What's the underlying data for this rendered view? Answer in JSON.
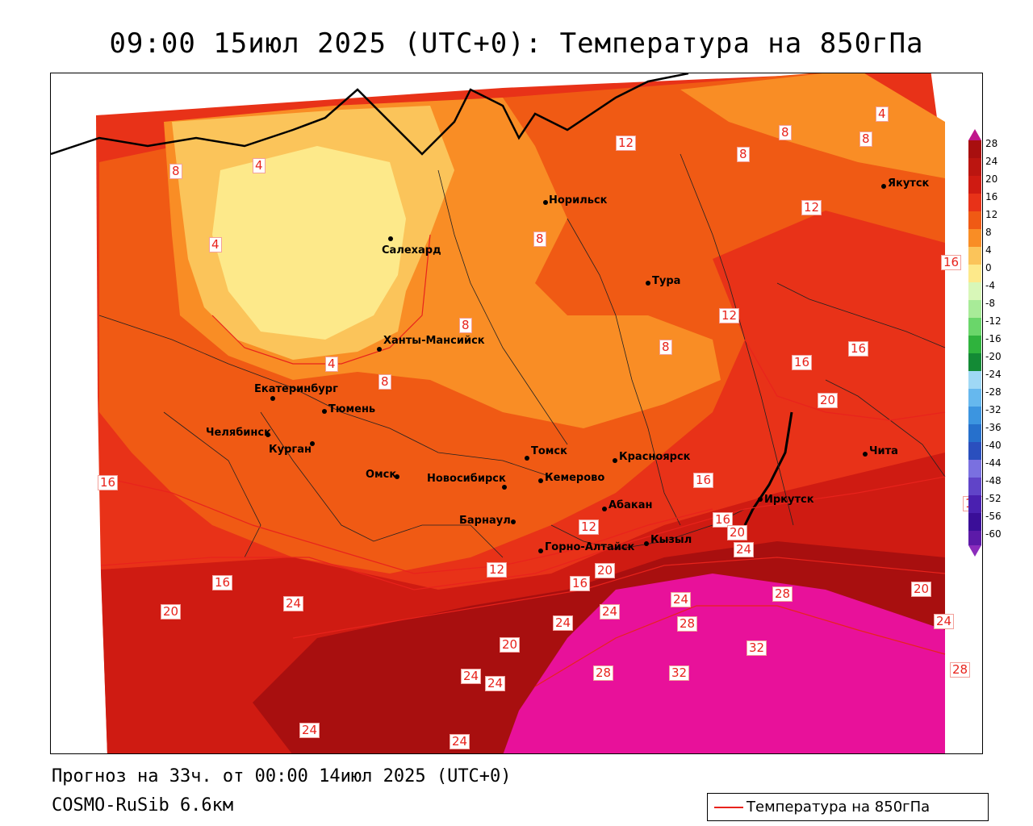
{
  "title": "09:00 15июл 2025 (UTC+0): Температура на 850гПа",
  "footer": {
    "forecast": "Прогноз на 33ч. от 00:00 14июл 2025 (UTC+0)",
    "model": "COSMO-RuSib 6.6км"
  },
  "legend_series": "Температура на 850гПа",
  "legend_ticks": [
    "28",
    "24",
    "20",
    "16",
    "12",
    "8",
    "4",
    "0",
    "-4",
    "-8",
    "-12",
    "-16",
    "-20",
    "-24",
    "-28",
    "-32",
    "-36",
    "-40",
    "-44",
    "-48",
    "-52",
    "-56",
    "-60"
  ],
  "colors": {
    "c28": "#e8119a",
    "c24": "#a80f0f",
    "c20": "#cf1b12",
    "c16": "#e83218",
    "c12": "#f05a14",
    "c8": "#f98d25",
    "c4": "#fbc45a",
    "c0": "#fde98a",
    "isoline": "#e8231c"
  },
  "cities": [
    {
      "name": "Норильск"
    },
    {
      "name": "Салехард"
    },
    {
      "name": "Тура"
    },
    {
      "name": "Ханты-Мансийск"
    },
    {
      "name": "Екатеринбург"
    },
    {
      "name": "Тюмень"
    },
    {
      "name": "Челябинск"
    },
    {
      "name": "Курган"
    },
    {
      "name": "Омск"
    },
    {
      "name": "Новосибирск"
    },
    {
      "name": "Томск"
    },
    {
      "name": "Кемерово"
    },
    {
      "name": "Красноярск"
    },
    {
      "name": "Абакан"
    },
    {
      "name": "Барнаул"
    },
    {
      "name": "Горно-Алтайск"
    },
    {
      "name": "Кызыл"
    },
    {
      "name": "Иркутск"
    },
    {
      "name": "Чита"
    },
    {
      "name": "Якутск"
    }
  ],
  "isolabels": [
    "12",
    "8",
    "8",
    "8",
    "4",
    "8",
    "12",
    "16",
    "4",
    "8",
    "4",
    "8",
    "8",
    "4",
    "8",
    "12",
    "16",
    "16",
    "20",
    "16",
    "16",
    "12",
    "16",
    "16",
    "20",
    "24",
    "12",
    "16",
    "20",
    "24",
    "20",
    "24",
    "24",
    "28",
    "28",
    "32",
    "20",
    "24",
    "24",
    "32",
    "28",
    "24",
    "20",
    "24",
    "28",
    "16",
    "24",
    "24"
  ]
}
